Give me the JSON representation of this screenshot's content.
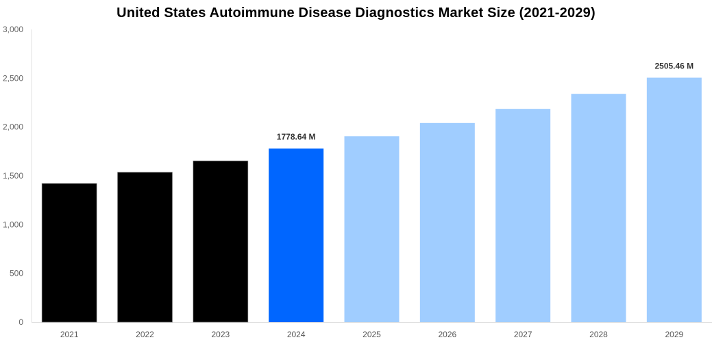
{
  "chart_data": {
    "type": "bar",
    "title": "United States Autoimmune Disease Diagnostics Market Size (2021-2029)",
    "xlabel": "",
    "ylabel": "",
    "categories": [
      "2021",
      "2022",
      "2023",
      "2024",
      "2025",
      "2026",
      "2027",
      "2028",
      "2029"
    ],
    "values": [
      1421,
      1536,
      1653,
      1778.64,
      1905,
      2041,
      2186,
      2340,
      2505.46
    ],
    "bar_colors": [
      "#000000",
      "#000000",
      "#000000",
      "#0066ff",
      "#a0cdff",
      "#a0cdff",
      "#a0cdff",
      "#a0cdff",
      "#a0cdff"
    ],
    "data_labels": {
      "3": "1778.64 M",
      "8": "2505.46 M"
    },
    "ylim": [
      0,
      3000
    ],
    "yticks": [
      0,
      500,
      1000,
      1500,
      2000,
      2500,
      3000
    ],
    "ytick_labels": [
      "0",
      "500",
      "1,000",
      "1,500",
      "2,000",
      "2,500",
      "3,000"
    ],
    "grid": false,
    "legend": "none"
  }
}
